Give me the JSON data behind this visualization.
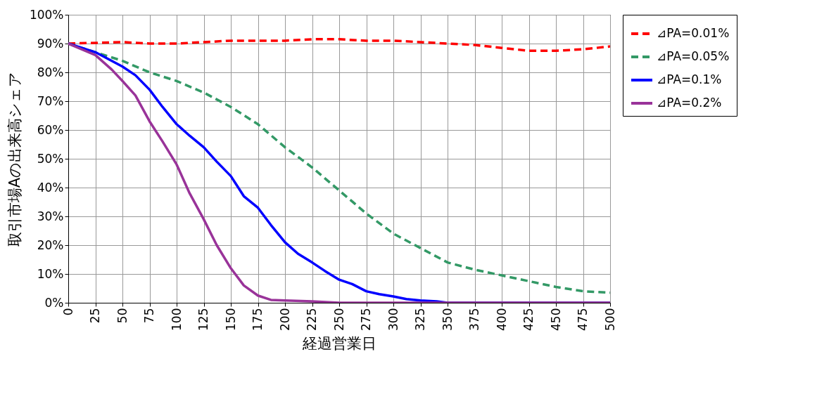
{
  "chart_data": {
    "type": "line",
    "xlabel": "経過営業日",
    "ylabel": "取引市場Aの出来高シェア",
    "xlim": [
      0,
      500
    ],
    "xticks": [
      0,
      25,
      50,
      75,
      100,
      125,
      150,
      175,
      200,
      225,
      250,
      275,
      300,
      325,
      350,
      375,
      400,
      425,
      450,
      475,
      500
    ],
    "ylim": [
      0,
      100
    ],
    "yticks": [
      {
        "value": 0,
        "label": "0%"
      },
      {
        "value": 10,
        "label": "10%"
      },
      {
        "value": 20,
        "label": "20%"
      },
      {
        "value": 30,
        "label": "30%"
      },
      {
        "value": 40,
        "label": "40%"
      },
      {
        "value": 50,
        "label": "50%"
      },
      {
        "value": 60,
        "label": "60%"
      },
      {
        "value": 70,
        "label": "70%"
      },
      {
        "value": 80,
        "label": "80%"
      },
      {
        "value": 90,
        "label": "90%"
      },
      {
        "value": 100,
        "label": "100%"
      }
    ],
    "grid": true,
    "legend": "right",
    "series": [
      {
        "name": "⊿PA=0.01%",
        "color": "#ff0000",
        "line_style": "dashed",
        "x": [
          0,
          50,
          75,
          100,
          125,
          150,
          175,
          200,
          225,
          250,
          275,
          300,
          325,
          350,
          375,
          400,
          425,
          450,
          475,
          500
        ],
        "values": [
          90,
          90.5,
          90,
          90,
          90.5,
          91,
          91,
          91,
          91.5,
          91.5,
          91,
          91,
          90.5,
          90,
          89.5,
          88.5,
          87.5,
          87.5,
          88,
          89
        ]
      },
      {
        "name": "⊿PA=0.05%",
        "color": "#339966",
        "line_style": "dashed",
        "x": [
          0,
          25,
          50,
          75,
          100,
          125,
          150,
          175,
          200,
          225,
          250,
          275,
          300,
          325,
          350,
          375,
          400,
          425,
          450,
          475,
          500
        ],
        "values": [
          90,
          87,
          84,
          80,
          77,
          73,
          68,
          62,
          54,
          47,
          39,
          31,
          24,
          19,
          14,
          11.5,
          9.5,
          7.5,
          5.5,
          4,
          3.5
        ]
      },
      {
        "name": "⊿PA=0.1%",
        "color": "#0000ff",
        "line_style": "solid",
        "x": [
          0,
          25,
          50,
          62,
          75,
          87,
          100,
          112,
          125,
          137,
          150,
          162,
          175,
          187,
          200,
          212,
          225,
          237,
          250,
          262,
          275,
          287,
          300,
          312,
          325,
          340,
          350,
          500
        ],
        "values": [
          90,
          87,
          82,
          79,
          74,
          68,
          62,
          58,
          54,
          49,
          44,
          37,
          33,
          27,
          21,
          17,
          14,
          11,
          8,
          6.5,
          4,
          3,
          2.2,
          1.3,
          0.8,
          0.5,
          0,
          0
        ]
      },
      {
        "name": "⊿PA=0.2%",
        "color": "#993399",
        "line_style": "solid",
        "x": [
          0,
          25,
          40,
          50,
          62,
          75,
          87,
          100,
          112,
          125,
          137,
          150,
          162,
          175,
          187,
          200,
          225,
          250,
          500
        ],
        "values": [
          90,
          86,
          81,
          77,
          72,
          63,
          56,
          48,
          38,
          29,
          20,
          12,
          6,
          2.5,
          1,
          0.8,
          0.5,
          0,
          0
        ]
      }
    ]
  }
}
